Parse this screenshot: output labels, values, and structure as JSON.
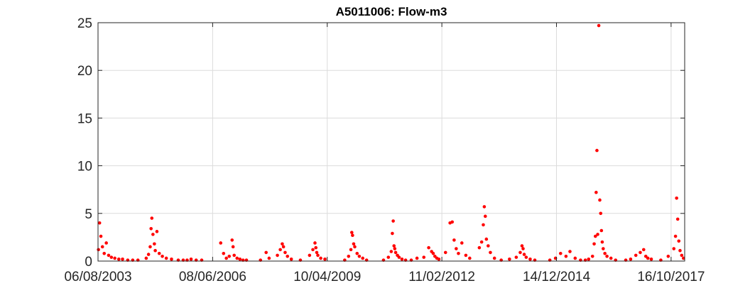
{
  "chart_data": {
    "type": "scatter",
    "title": "A5011006: Flow-m3",
    "xlabel": "",
    "ylabel": "",
    "x_axis": "date",
    "xlim": [
      "2003-08-06",
      "2018-02-16"
    ],
    "ylim": [
      0,
      25
    ],
    "x_ticks": [
      "2003-08-06",
      "2006-06-08",
      "2009-04-10",
      "2012-02-11",
      "2014-12-14",
      "2017-10-16"
    ],
    "x_tick_labels": [
      "06/08/2003",
      "08/06/2006",
      "10/04/2009",
      "11/02/2012",
      "14/12/2014",
      "16/10/2017"
    ],
    "y_ticks": [
      0,
      5,
      10,
      15,
      20,
      25
    ],
    "y_tick_labels": [
      "0",
      "5",
      "10",
      "15",
      "20",
      "25"
    ],
    "grid": true,
    "legend": "none",
    "marker_color": "#ff0000",
    "series": [
      {
        "x": [
          "2003-08-10",
          "2003-08-20",
          "2003-09-01",
          "2003-09-15",
          "2003-10-01",
          "2003-10-20",
          "2003-11-10",
          "2003-12-05",
          "2004-01-05",
          "2004-02-10",
          "2004-03-15",
          "2004-05-01",
          "2004-06-15",
          "2004-08-01",
          "2004-10-15",
          "2004-11-05",
          "2004-11-20",
          "2004-11-28",
          "2004-12-05",
          "2004-12-15",
          "2004-12-28",
          "2005-01-05",
          "2005-01-20",
          "2005-02-10",
          "2005-03-10",
          "2005-04-15",
          "2005-06-01",
          "2005-08-01",
          "2005-09-15",
          "2005-10-20",
          "2005-11-25",
          "2006-01-10",
          "2006-03-01",
          "2006-08-20",
          "2006-09-15",
          "2006-10-10",
          "2006-11-05",
          "2006-12-01",
          "2006-12-10",
          "2006-12-20",
          "2007-01-15",
          "2007-02-10",
          "2007-03-10",
          "2007-04-10",
          "2007-08-15",
          "2007-10-05",
          "2007-11-01",
          "2008-01-15",
          "2008-02-10",
          "2008-02-28",
          "2008-03-10",
          "2008-03-25",
          "2008-04-15",
          "2008-05-20",
          "2008-08-10",
          "2008-11-01",
          "2008-12-01",
          "2008-12-20",
          "2008-12-28",
          "2009-01-05",
          "2009-01-15",
          "2009-02-10",
          "2009-03-20",
          "2009-09-15",
          "2009-10-20",
          "2009-11-10",
          "2009-11-18",
          "2009-11-25",
          "2009-12-05",
          "2009-12-15",
          "2010-01-05",
          "2010-01-25",
          "2010-02-25",
          "2010-04-01",
          "2010-09-01",
          "2010-10-15",
          "2010-11-10",
          "2010-11-20",
          "2010-11-28",
          "2010-12-05",
          "2010-12-12",
          "2010-12-20",
          "2011-01-05",
          "2011-01-20",
          "2011-02-15",
          "2011-03-20",
          "2011-05-10",
          "2011-07-01",
          "2011-09-01",
          "2011-10-15",
          "2011-11-10",
          "2011-11-25",
          "2011-12-10",
          "2011-12-28",
          "2012-01-15",
          "2012-03-15",
          "2012-04-25",
          "2012-05-15",
          "2012-06-01",
          "2012-06-20",
          "2012-07-10",
          "2012-08-10",
          "2012-09-15",
          "2012-10-20",
          "2013-01-15",
          "2013-02-05",
          "2013-02-20",
          "2013-03-01",
          "2013-03-10",
          "2013-03-20",
          "2013-04-05",
          "2013-04-25",
          "2013-06-01",
          "2013-08-01",
          "2013-10-15",
          "2013-12-15",
          "2014-01-20",
          "2014-02-05",
          "2014-02-15",
          "2014-02-25",
          "2014-03-15",
          "2014-04-20",
          "2014-06-01",
          "2014-10-15",
          "2014-12-05",
          "2015-01-20",
          "2015-03-10",
          "2015-04-15",
          "2015-06-01",
          "2015-07-20",
          "2015-09-01",
          "2015-10-01",
          "2015-11-05",
          "2015-11-20",
          "2015-12-01",
          "2015-12-08",
          "2015-12-15",
          "2015-12-22",
          "2016-01-01",
          "2016-01-10",
          "2016-01-18",
          "2016-01-25",
          "2016-02-01",
          "2016-02-10",
          "2016-02-25",
          "2016-03-15",
          "2016-04-20",
          "2016-06-01",
          "2016-09-01",
          "2016-10-15",
          "2016-12-01",
          "2017-01-10",
          "2017-02-10",
          "2017-03-01",
          "2017-03-20",
          "2017-04-20",
          "2017-07-15",
          "2017-09-20",
          "2017-11-10",
          "2017-11-25",
          "2017-12-05",
          "2017-12-15",
          "2017-12-25",
          "2018-01-05",
          "2018-01-20",
          "2018-02-05"
        ],
        "y": [
          1.2,
          4.0,
          2.6,
          1.5,
          0.8,
          1.9,
          0.6,
          0.4,
          0.3,
          0.2,
          0.2,
          0.1,
          0.1,
          0.1,
          0.3,
          0.7,
          1.5,
          3.4,
          4.5,
          2.8,
          1.8,
          1.1,
          3.1,
          0.8,
          0.5,
          0.3,
          0.2,
          0.1,
          0.1,
          0.1,
          0.2,
          0.1,
          0.1,
          1.9,
          0.8,
          0.3,
          0.5,
          2.2,
          1.5,
          0.6,
          0.3,
          0.2,
          0.1,
          0.1,
          0.1,
          0.9,
          0.3,
          0.6,
          1.2,
          1.8,
          1.5,
          0.9,
          0.5,
          0.2,
          0.1,
          0.6,
          1.2,
          1.9,
          1.4,
          0.9,
          0.6,
          0.3,
          0.2,
          0.1,
          0.5,
          1.2,
          3.0,
          2.7,
          1.8,
          1.5,
          0.8,
          0.5,
          0.3,
          0.1,
          0.1,
          0.4,
          1.0,
          2.9,
          4.2,
          1.6,
          1.3,
          0.9,
          0.6,
          0.4,
          0.2,
          0.1,
          0.1,
          0.3,
          0.4,
          1.4,
          1.0,
          0.8,
          0.5,
          0.3,
          0.2,
          0.9,
          4.0,
          4.1,
          2.2,
          1.3,
          0.8,
          1.9,
          0.6,
          0.3,
          1.4,
          2.0,
          3.8,
          5.7,
          4.7,
          2.3,
          1.6,
          0.9,
          0.3,
          0.1,
          0.2,
          0.4,
          0.9,
          1.6,
          1.3,
          0.7,
          0.4,
          0.2,
          0.1,
          0.1,
          0.3,
          0.8,
          0.5,
          1.0,
          0.3,
          0.1,
          0.1,
          0.2,
          0.5,
          1.8,
          2.6,
          7.2,
          11.6,
          2.8,
          24.7,
          6.4,
          5.0,
          3.2,
          2.0,
          1.3,
          0.8,
          0.5,
          0.3,
          0.1,
          0.1,
          0.2,
          0.6,
          0.9,
          1.2,
          0.5,
          0.3,
          0.2,
          0.1,
          0.5,
          1.3,
          2.6,
          6.6,
          4.4,
          2.1,
          1.1,
          0.6,
          0.3
        ]
      }
    ]
  }
}
